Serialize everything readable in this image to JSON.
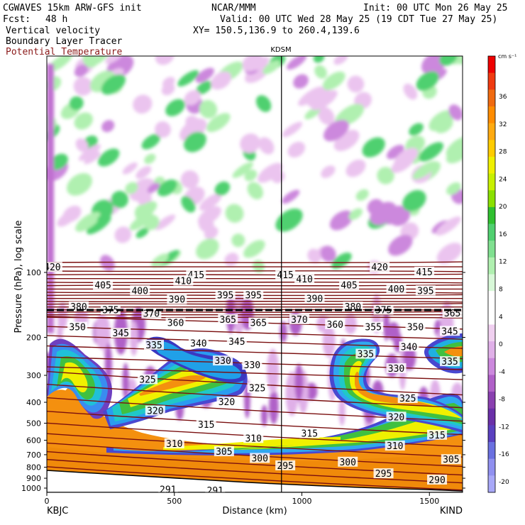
{
  "header": {
    "model": "CGWAVES 15km ARW-GFS init",
    "org": "NCAR/MMM",
    "init": "Init: 00 UTC Mon 26 May 25",
    "fcst_label": "Fcst:",
    "fcst_value": "48 h",
    "valid": "Valid: 00 UTC Wed 28 May 25 (19 CDT Tue 27 May 25)",
    "field1": "Vertical velocity",
    "field2": "Boundary Layer Tracer",
    "field3": "Potential Temperature",
    "xy": "XY= 150.5,136.9 to 260.4,139.6",
    "field3_color": "#8b1a1a"
  },
  "chart_data": {
    "type": "heatmap",
    "title": "",
    "xlabel": "Distance (km)",
    "ylabel": "Pressure (hPa), log scale",
    "y_scale": "log",
    "xlim": [
      0,
      1630
    ],
    "x_ticks": [
      0,
      500,
      1000,
      1500
    ],
    "y_ticks": [
      100,
      200,
      300,
      400,
      500,
      600,
      700,
      800,
      900,
      1000
    ],
    "left_station": "KBJC",
    "right_station": "KIND",
    "marker_station": "KDSM",
    "marker_x_km": 920,
    "colorbar": {
      "unit": "cm s⁻¹",
      "levels": [
        36,
        32,
        28,
        24,
        20,
        16,
        12,
        8,
        4,
        0,
        -4,
        -8,
        -12,
        -16,
        -20
      ],
      "colors": [
        "#ee0000",
        "#f03a10",
        "#f06a10",
        "#ff8c00",
        "#ffaa10",
        "#ffcc00",
        "#f0f000",
        "#c8f000",
        "#8ae000",
        "#30c030",
        "#50d070",
        "#80e090",
        "#b0f0b0",
        "#d8f8d8",
        "#ffffff",
        "#ffffff",
        "#f0d0f0",
        "#e0b0e8",
        "#cc88dd",
        "#b060c8",
        "#8a40b0",
        "#6a30a8",
        "#5a40c0",
        "#6a70e0",
        "#9090f0",
        "#a8a8f8"
      ]
    },
    "theta_labels": [
      {
        "v": "420",
        "x": 22,
        "p": 95
      },
      {
        "v": "415",
        "x": 585,
        "p": 103
      },
      {
        "v": "415",
        "x": 935,
        "p": 103
      },
      {
        "v": "420",
        "x": 1305,
        "p": 95
      },
      {
        "v": "415",
        "x": 1480,
        "p": 100
      },
      {
        "v": "405",
        "x": 220,
        "p": 115
      },
      {
        "v": "410",
        "x": 535,
        "p": 110
      },
      {
        "v": "410",
        "x": 1010,
        "p": 108
      },
      {
        "v": "405",
        "x": 1185,
        "p": 115
      },
      {
        "v": "400",
        "x": 365,
        "p": 122
      },
      {
        "v": "400",
        "x": 1370,
        "p": 120
      },
      {
        "v": "395",
        "x": 1485,
        "p": 122
      },
      {
        "v": "390",
        "x": 510,
        "p": 134
      },
      {
        "v": "395",
        "x": 700,
        "p": 128
      },
      {
        "v": "395",
        "x": 810,
        "p": 128
      },
      {
        "v": "390",
        "x": 1050,
        "p": 133
      },
      {
        "v": "380",
        "x": 125,
        "p": 145
      },
      {
        "v": "375",
        "x": 250,
        "p": 150
      },
      {
        "v": "370",
        "x": 410,
        "p": 156
      },
      {
        "v": "380",
        "x": 1200,
        "p": 145
      },
      {
        "v": "375",
        "x": 1320,
        "p": 150
      },
      {
        "v": "365",
        "x": 1590,
        "p": 155
      },
      {
        "v": "360",
        "x": 505,
        "p": 172
      },
      {
        "v": "365",
        "x": 710,
        "p": 166
      },
      {
        "v": "365",
        "x": 830,
        "p": 172
      },
      {
        "v": "370",
        "x": 990,
        "p": 166
      },
      {
        "v": "360",
        "x": 1130,
        "p": 175
      },
      {
        "v": "355",
        "x": 1280,
        "p": 180
      },
      {
        "v": "350",
        "x": 120,
        "p": 180
      },
      {
        "v": "345",
        "x": 290,
        "p": 192
      },
      {
        "v": "350",
        "x": 1445,
        "p": 180
      },
      {
        "v": "345",
        "x": 1580,
        "p": 188
      },
      {
        "v": "335",
        "x": 420,
        "p": 218
      },
      {
        "v": "340",
        "x": 595,
        "p": 214
      },
      {
        "v": "345",
        "x": 745,
        "p": 210
      },
      {
        "v": "335",
        "x": 1250,
        "p": 240
      },
      {
        "v": "340",
        "x": 1420,
        "p": 222
      },
      {
        "v": "330",
        "x": 690,
        "p": 258
      },
      {
        "v": "330",
        "x": 805,
        "p": 270
      },
      {
        "v": "330",
        "x": 1370,
        "p": 280
      },
      {
        "v": "335",
        "x": 1580,
        "p": 260
      },
      {
        "v": "325",
        "x": 395,
        "p": 315
      },
      {
        "v": "325",
        "x": 825,
        "p": 345
      },
      {
        "v": "325",
        "x": 1415,
        "p": 385
      },
      {
        "v": "320",
        "x": 425,
        "p": 440
      },
      {
        "v": "320",
        "x": 705,
        "p": 400
      },
      {
        "v": "320",
        "x": 1370,
        "p": 470
      },
      {
        "v": "315",
        "x": 625,
        "p": 510
      },
      {
        "v": "315",
        "x": 1030,
        "p": 560
      },
      {
        "v": "315",
        "x": 1530,
        "p": 570
      },
      {
        "v": "310",
        "x": 500,
        "p": 625
      },
      {
        "v": "310",
        "x": 810,
        "p": 590
      },
      {
        "v": "310",
        "x": 1365,
        "p": 640
      },
      {
        "v": "305",
        "x": 695,
        "p": 680
      },
      {
        "v": "305",
        "x": 1585,
        "p": 740
      },
      {
        "v": "300",
        "x": 835,
        "p": 730
      },
      {
        "v": "300",
        "x": 1180,
        "p": 760
      },
      {
        "v": "295",
        "x": 935,
        "p": 790
      },
      {
        "v": "295",
        "x": 1320,
        "p": 860
      },
      {
        "v": "290",
        "x": 1530,
        "p": 920
      },
      {
        "v": "291",
        "x": 475,
        "p": 1020
      },
      {
        "v": "291",
        "x": 660,
        "p": 1030
      }
    ]
  }
}
